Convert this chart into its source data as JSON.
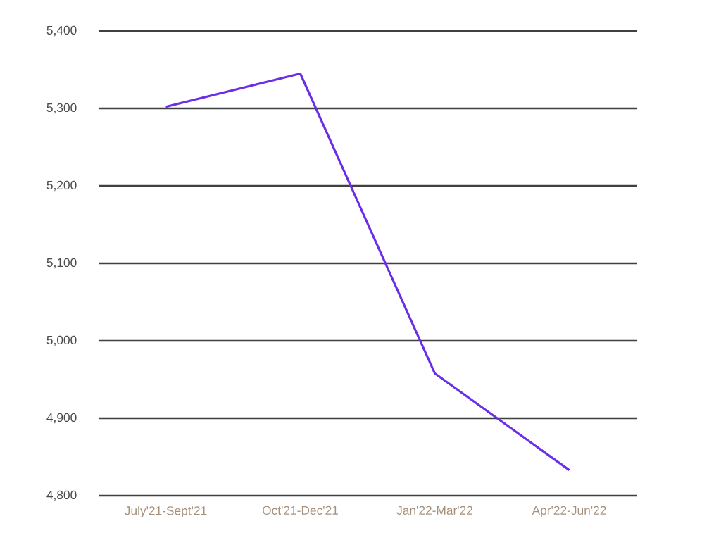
{
  "chart_data": {
    "type": "line",
    "categories": [
      "July'21-Sept'21",
      "Oct'21-Dec'21",
      "Jan'22-Mar'22",
      "Apr'22-Jun'22"
    ],
    "values": [
      5302,
      5345,
      4958,
      4833
    ],
    "color": "#6a2ee8",
    "ylim": [
      4800,
      5400
    ],
    "yticks": [
      {
        "value": 4800,
        "label": "4,800"
      },
      {
        "value": 4900,
        "label": "4,900"
      },
      {
        "value": 5000,
        "label": "5,000"
      },
      {
        "value": 5100,
        "label": "5,100"
      },
      {
        "value": 5200,
        "label": "5,200"
      },
      {
        "value": 5300,
        "label": "5,300"
      },
      {
        "value": 5400,
        "label": "5,400"
      }
    ],
    "grid": "y",
    "marker": "none",
    "line_style": "solid"
  }
}
